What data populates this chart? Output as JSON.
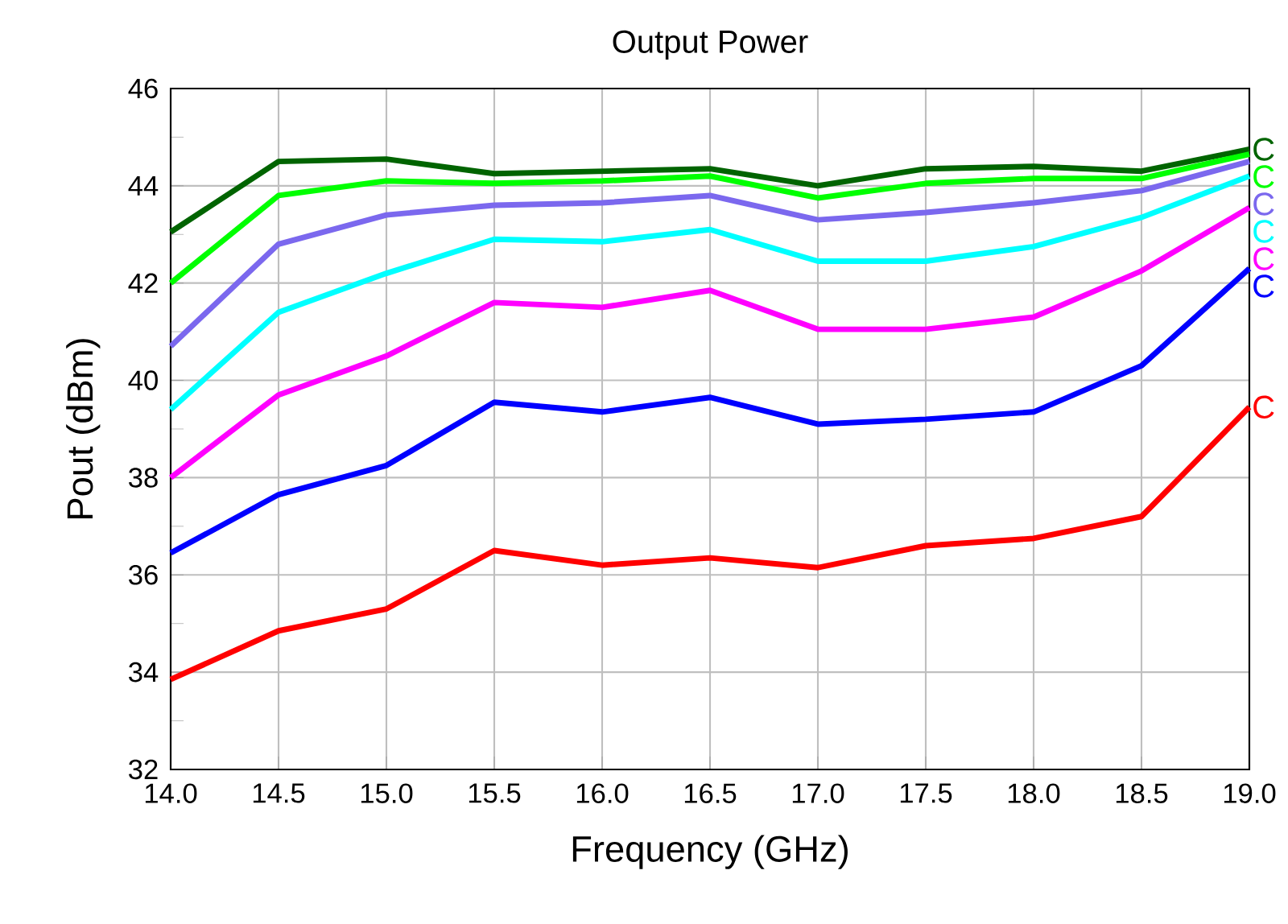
{
  "chart_data": {
    "type": "line",
    "title": "Output Power",
    "xlabel": "Frequency (GHz)",
    "ylabel": "Pout (dBm)",
    "x": [
      14.0,
      14.5,
      15.0,
      15.5,
      16.0,
      16.5,
      17.0,
      17.5,
      18.0,
      18.5,
      19.0
    ],
    "xlim": [
      14,
      19
    ],
    "xticks": [
      {
        "value": 14,
        "label": "14.0"
      },
      {
        "value": 14.5,
        "label": "14.5"
      },
      {
        "value": 15,
        "label": "15.0"
      },
      {
        "value": 15.5,
        "label": "15.5"
      },
      {
        "value": 16,
        "label": "16.0"
      },
      {
        "value": 16.5,
        "label": "16.5"
      },
      {
        "value": 17,
        "label": "17.0"
      },
      {
        "value": 17.5,
        "label": "17.5"
      },
      {
        "value": 18,
        "label": "18.0"
      },
      {
        "value": 18.5,
        "label": "18.5"
      },
      {
        "value": 19,
        "label": "19.0"
      }
    ],
    "ylim": [
      32,
      46
    ],
    "yticks": [
      32,
      34,
      36,
      38,
      40,
      42,
      44,
      46
    ],
    "grid": true,
    "marker": "none",
    "line_style": "solid",
    "series": [
      {
        "name": "C",
        "color": "#006400",
        "values": [
          43.05,
          44.5,
          44.55,
          44.25,
          44.3,
          44.35,
          44.0,
          44.35,
          44.4,
          44.3,
          44.75
        ]
      },
      {
        "name": "C",
        "color": "#00ff00",
        "values": [
          42.0,
          43.8,
          44.1,
          44.05,
          44.1,
          44.2,
          43.75,
          44.05,
          44.15,
          44.15,
          44.65
        ]
      },
      {
        "name": "C",
        "color": "#7b68ee",
        "values": [
          40.7,
          42.8,
          43.4,
          43.6,
          43.65,
          43.8,
          43.3,
          43.45,
          43.65,
          43.9,
          44.5
        ]
      },
      {
        "name": "C",
        "color": "#00ffff",
        "values": [
          39.4,
          41.4,
          42.2,
          42.9,
          42.85,
          43.1,
          42.45,
          42.45,
          42.75,
          43.35,
          44.2
        ]
      },
      {
        "name": "C",
        "color": "#ff00ff",
        "values": [
          38.0,
          39.7,
          40.5,
          41.6,
          41.5,
          41.85,
          41.05,
          41.05,
          41.3,
          42.25,
          43.55
        ]
      },
      {
        "name": "C",
        "color": "#0000ff",
        "values": [
          36.45,
          37.65,
          38.25,
          39.55,
          39.35,
          39.65,
          39.1,
          39.2,
          39.35,
          40.3,
          42.3
        ]
      },
      {
        "name": "C",
        "color": "#ff0000",
        "values": [
          33.85,
          34.85,
          35.3,
          36.5,
          36.2,
          36.35,
          36.15,
          36.6,
          36.75,
          37.2,
          39.45
        ]
      }
    ]
  }
}
